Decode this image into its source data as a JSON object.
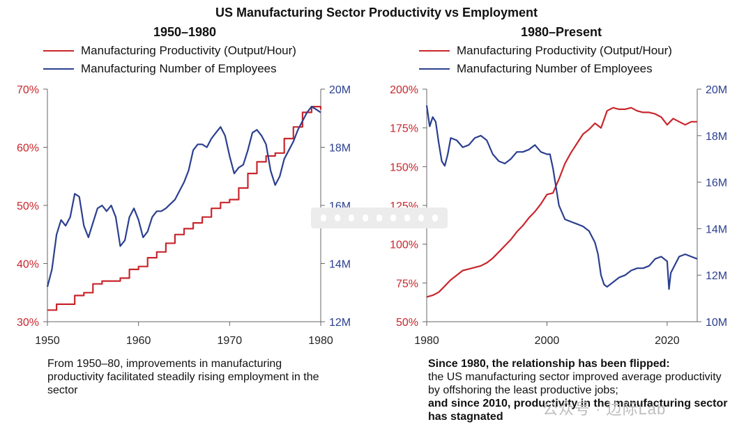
{
  "title": "US Manufacturing Sector Productivity vs Employment",
  "colors": {
    "productivity": "#c8262c",
    "employees": "#2b3f8f",
    "axis": "#666666"
  },
  "chart_data": [
    {
      "type": "line",
      "title": "1950–1980",
      "xlim": [
        1950,
        1980
      ],
      "x_ticks": [
        1950,
        1960,
        1970,
        1980
      ],
      "x_tick_labels": [
        "1950",
        "1960",
        "1970",
        "1980"
      ],
      "left_axis": {
        "label": "Manufacturing Productivity (Output/Hour)",
        "ylim": [
          30,
          70
        ],
        "ticks": [
          30,
          40,
          50,
          60,
          70
        ],
        "tick_labels": [
          "30%",
          "40%",
          "50%",
          "60%",
          "70%"
        ]
      },
      "right_axis": {
        "label": "Manufacturing Number of Employees",
        "ylim": [
          12,
          20
        ],
        "ticks": [
          12,
          14,
          16,
          18,
          20
        ],
        "tick_labels": [
          "12M",
          "14M",
          "16M",
          "18M",
          "20M"
        ]
      },
      "series": [
        {
          "name": "Manufacturing Productivity (Output/Hour)",
          "axis": "left",
          "step": true,
          "x": [
            1950,
            1951,
            1952,
            1953,
            1954,
            1955,
            1956,
            1957,
            1958,
            1959,
            1960,
            1961,
            1962,
            1963,
            1964,
            1965,
            1966,
            1967,
            1968,
            1969,
            1970,
            1971,
            1972,
            1973,
            1974,
            1975,
            1976,
            1977,
            1978,
            1979,
            1979.5,
            1980
          ],
          "y": [
            32,
            33,
            33,
            34.5,
            35,
            36.5,
            37,
            37,
            37.5,
            39,
            39.5,
            41,
            42,
            43.5,
            45,
            46,
            47,
            48,
            49.5,
            50.5,
            51,
            53,
            55.5,
            57.5,
            58.5,
            59,
            61.5,
            63.5,
            66,
            67,
            67,
            66.5
          ]
        },
        {
          "name": "Manufacturing Number of Employees",
          "axis": "right",
          "x": [
            1950,
            1950.5,
            1951,
            1951.5,
            1952,
            1952.5,
            1953,
            1953.5,
            1954,
            1954.5,
            1955,
            1955.5,
            1956,
            1956.5,
            1957,
            1957.5,
            1958,
            1958.5,
            1959,
            1959.5,
            1960,
            1960.5,
            1961,
            1961.5,
            1962,
            1962.5,
            1963,
            1964,
            1965,
            1965.5,
            1966,
            1966.5,
            1967,
            1967.5,
            1968,
            1968.5,
            1969,
            1969.5,
            1970,
            1970.5,
            1971,
            1971.5,
            1972,
            1972.5,
            1973,
            1973.5,
            1974,
            1974.5,
            1975,
            1975.5,
            1976,
            1976.5,
            1977,
            1977.5,
            1978,
            1978.5,
            1979,
            1979.5,
            1980
          ],
          "y": [
            13.2,
            13.8,
            15.0,
            15.5,
            15.3,
            15.6,
            16.4,
            16.3,
            15.3,
            14.9,
            15.4,
            15.9,
            16.0,
            15.8,
            16.0,
            15.6,
            14.6,
            14.8,
            15.6,
            15.9,
            15.5,
            14.9,
            15.1,
            15.6,
            15.8,
            15.8,
            15.9,
            16.2,
            16.8,
            17.2,
            17.9,
            18.1,
            18.1,
            18.0,
            18.3,
            18.5,
            18.7,
            18.4,
            17.7,
            17.1,
            17.3,
            17.4,
            17.9,
            18.5,
            18.6,
            18.4,
            18.1,
            17.2,
            16.7,
            17.0,
            17.6,
            17.9,
            18.2,
            18.6,
            18.9,
            19.2,
            19.4,
            19.3,
            19.2
          ]
        }
      ]
    },
    {
      "type": "line",
      "title": "1980–Present",
      "xlim": [
        1980,
        2025
      ],
      "x_ticks": [
        1980,
        2000,
        2020
      ],
      "x_tick_labels": [
        "1980",
        "2000",
        "2020"
      ],
      "left_axis": {
        "label": "Manufacturing Productivity (Output/Hour)",
        "ylim": [
          50,
          200
        ],
        "ticks": [
          50,
          75,
          100,
          125,
          150,
          175,
          200
        ],
        "tick_labels": [
          "50%",
          "75%",
          "100%",
          "125%",
          "150%",
          "175%",
          "200%"
        ]
      },
      "right_axis": {
        "label": "Manufacturing Number of Employees",
        "ylim": [
          10,
          20
        ],
        "ticks": [
          10,
          12,
          14,
          16,
          18,
          20
        ],
        "tick_labels": [
          "10M",
          "12M",
          "14M",
          "16M",
          "18M",
          "20M"
        ]
      },
      "series": [
        {
          "name": "Manufacturing Productivity (Output/Hour)",
          "axis": "left",
          "x": [
            1980,
            1981,
            1982,
            1983,
            1984,
            1985,
            1986,
            1987,
            1988,
            1989,
            1990,
            1991,
            1992,
            1993,
            1994,
            1995,
            1996,
            1997,
            1998,
            1999,
            2000,
            2001,
            2002,
            2003,
            2004,
            2005,
            2006,
            2007,
            2008,
            2009,
            2010,
            2011,
            2012,
            2013,
            2014,
            2015,
            2016,
            2017,
            2018,
            2019,
            2020,
            2021,
            2022,
            2023,
            2024,
            2025
          ],
          "y": [
            66,
            67,
            69,
            73,
            77,
            80,
            83,
            84,
            85,
            86,
            88,
            91,
            95,
            99,
            103,
            108,
            112,
            117,
            121,
            126,
            132,
            133,
            142,
            152,
            159,
            165,
            171,
            174,
            178,
            175,
            186,
            188,
            187,
            187,
            188,
            186,
            185,
            185,
            184,
            182,
            177,
            181,
            179,
            177,
            179,
            179
          ]
        },
        {
          "name": "Manufacturing Number of Employees",
          "axis": "right",
          "x": [
            1980,
            1980.5,
            1981,
            1981.5,
            1982,
            1982.5,
            1983,
            1983.5,
            1984,
            1985,
            1986,
            1987,
            1988,
            1989,
            1990,
            1991,
            1992,
            1993,
            1994,
            1995,
            1996,
            1997,
            1998,
            1999,
            2000,
            2000.5,
            2001,
            2001.5,
            2002,
            2003,
            2004,
            2005,
            2006,
            2007,
            2008,
            2008.5,
            2009,
            2009.5,
            2010,
            2011,
            2012,
            2013,
            2014,
            2015,
            2016,
            2017,
            2018,
            2019,
            2020,
            2020.3,
            2020.6,
            2021,
            2022,
            2023,
            2024,
            2025
          ],
          "y": [
            19.3,
            18.4,
            18.8,
            18.6,
            17.7,
            16.9,
            16.7,
            17.2,
            17.9,
            17.8,
            17.5,
            17.6,
            17.9,
            18.0,
            17.8,
            17.2,
            16.9,
            16.8,
            17.0,
            17.3,
            17.3,
            17.4,
            17.6,
            17.3,
            17.2,
            17.2,
            16.6,
            15.8,
            15.0,
            14.4,
            14.3,
            14.2,
            14.1,
            13.9,
            13.4,
            12.9,
            12.0,
            11.6,
            11.5,
            11.7,
            11.9,
            12.0,
            12.2,
            12.3,
            12.3,
            12.4,
            12.7,
            12.8,
            12.6,
            11.4,
            12.1,
            12.3,
            12.8,
            12.9,
            12.8,
            12.7
          ]
        }
      ]
    }
  ],
  "captions": {
    "left": "From 1950–80, improvements in manufacturing productivity facilitated steadily rising employment in the sector",
    "right_bold_1": "Since 1980, the relationship has been flipped:",
    "right_normal": "the US manufacturing sector improved average productivity by offshoring the least productive jobs;",
    "right_bold_2": "and since 2010, productivity in the manufacturing sector has stagnated"
  },
  "watermark": "公众号 · 边际Lab"
}
